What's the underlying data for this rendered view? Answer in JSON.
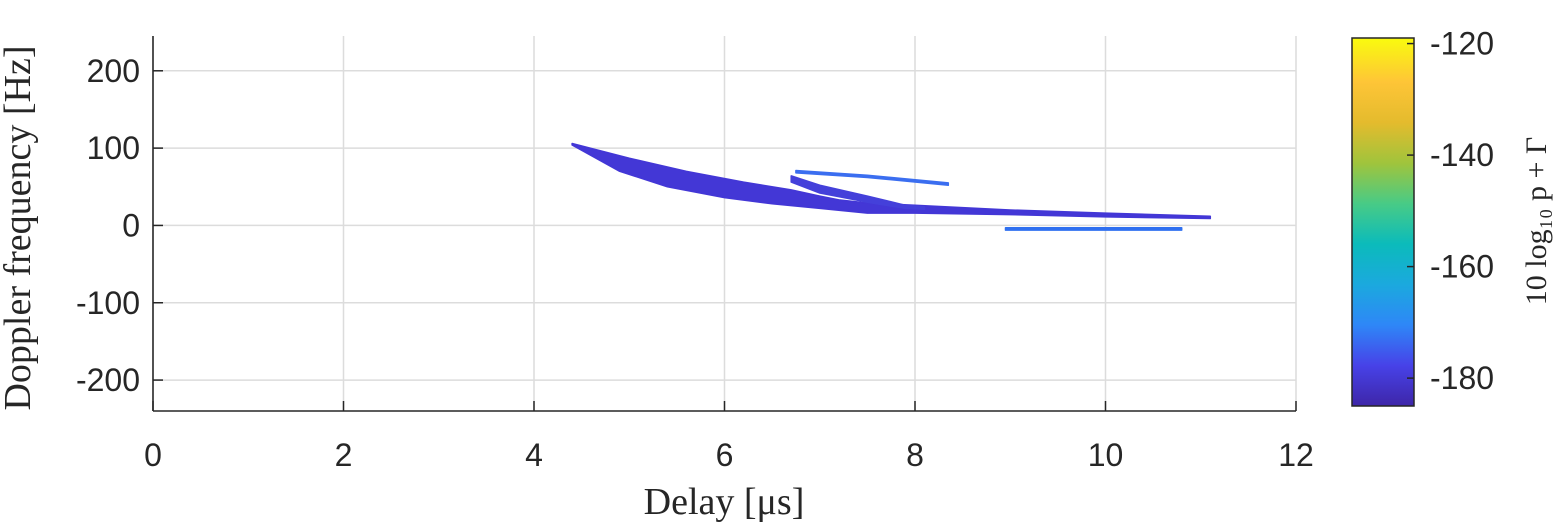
{
  "chart_data": {
    "type": "heatmap",
    "title": "",
    "xlabel_main": "Delay ",
    "xlabel_unit": "[μs]",
    "ylabel_main": "Doppler frequency ",
    "ylabel_unit": "[Hz]",
    "xlim": [
      0,
      12
    ],
    "ylim": [
      -240,
      245
    ],
    "xticks": [
      0,
      2,
      4,
      6,
      8,
      10,
      12
    ],
    "xtick_labels": [
      "0",
      "2",
      "4",
      "6",
      "8",
      "10",
      "12"
    ],
    "yticks": [
      200,
      100,
      0,
      -100,
      -200
    ],
    "ytick_labels": [
      "200",
      "100",
      "0",
      "-100",
      "-200"
    ],
    "grid": true,
    "colorbar": {
      "label": "10 log₁₀ p + Γ",
      "range": [
        -185,
        -119
      ],
      "ticks": [
        -120,
        -140,
        -160,
        -180
      ],
      "tick_labels": [
        "-120",
        "-140",
        "-160",
        "-180"
      ],
      "colormap": [
        "#3e26a8",
        "#4742e8",
        "#2e87f7",
        "#1ba9de",
        "#0bbbbb",
        "#48cb86",
        "#a0c43c",
        "#e4bb2d",
        "#fec537",
        "#f9fb0e"
      ]
    },
    "regions": [
      {
        "name": "main-branch",
        "color": "#4337d6",
        "level": -182,
        "upper": [
          [
            4.4,
            106
          ],
          [
            5.0,
            87
          ],
          [
            5.6,
            70
          ],
          [
            6.2,
            56
          ],
          [
            6.7,
            46
          ],
          [
            7.0,
            38
          ],
          [
            7.2,
            33
          ],
          [
            7.5,
            29
          ],
          [
            8.0,
            26
          ],
          [
            9.0,
            20
          ],
          [
            10.0,
            16
          ],
          [
            11.1,
            12
          ]
        ],
        "lower": [
          [
            11.1,
            9
          ],
          [
            10.0,
            11
          ],
          [
            9.0,
            14
          ],
          [
            8.0,
            16
          ],
          [
            7.7,
            16
          ],
          [
            7.5,
            16
          ],
          [
            7.0,
            22
          ],
          [
            6.5,
            28
          ],
          [
            6.0,
            36
          ],
          [
            5.4,
            50
          ],
          [
            4.9,
            70
          ],
          [
            4.4,
            104
          ]
        ]
      },
      {
        "name": "middle-branch",
        "color": "#4440da",
        "level": -180,
        "upper": [
          [
            6.7,
            64
          ],
          [
            7.0,
            52
          ],
          [
            7.5,
            38
          ],
          [
            7.9,
            26
          ],
          [
            8.1,
            24
          ]
        ],
        "lower": [
          [
            8.1,
            21
          ],
          [
            7.9,
            22
          ],
          [
            7.5,
            30
          ],
          [
            7.0,
            42
          ],
          [
            6.7,
            56
          ]
        ]
      },
      {
        "name": "upper-line",
        "color": "#3b6ef0",
        "level": -170,
        "upper": [
          [
            6.75,
            71
          ],
          [
            7.5,
            65
          ],
          [
            8.35,
            55
          ]
        ],
        "lower": [
          [
            8.35,
            52
          ],
          [
            7.5,
            62
          ],
          [
            6.75,
            68
          ]
        ]
      },
      {
        "name": "lower-line",
        "color": "#3070f0",
        "level": -168,
        "upper": [
          [
            8.95,
            -3
          ],
          [
            10.8,
            -3
          ]
        ],
        "lower": [
          [
            10.8,
            -6
          ],
          [
            8.95,
            -6
          ]
        ]
      }
    ]
  }
}
